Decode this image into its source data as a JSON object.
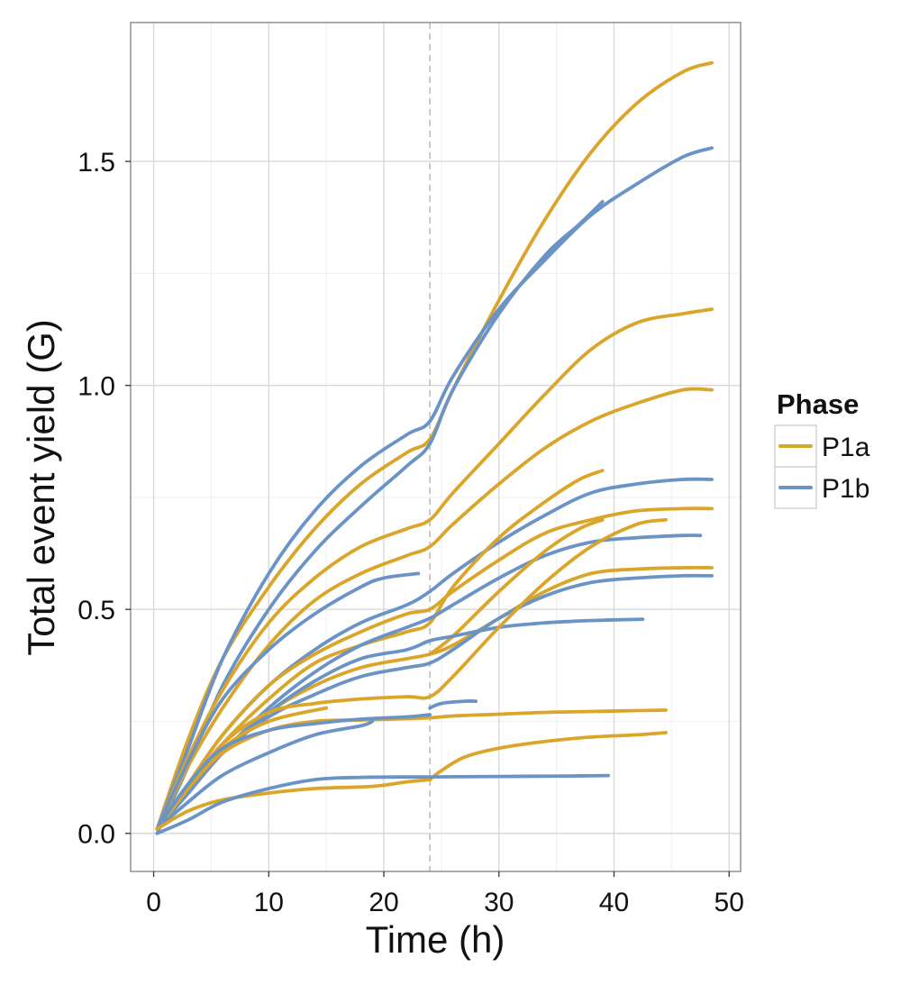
{
  "chart_data": {
    "type": "line",
    "xlabel": "Time (h)",
    "ylabel": "Total event yield (G)",
    "xlim": [
      -2,
      51
    ],
    "ylim": [
      -0.085,
      1.81
    ],
    "x_ticks": [
      0,
      10,
      20,
      30,
      40,
      50
    ],
    "y_ticks": [
      0.0,
      0.5,
      1.0,
      1.5
    ],
    "x_tick_labels": [
      "0",
      "10",
      "20",
      "30",
      "40",
      "50"
    ],
    "y_tick_labels": [
      "0.0",
      "0.5",
      "1.0",
      "1.5"
    ],
    "reference_line": {
      "x": 24,
      "style": "dashed"
    },
    "grid": true,
    "legend": {
      "title": "Phase",
      "position": "right",
      "entries": [
        {
          "label": "P1a",
          "color": "#dba52a"
        },
        {
          "label": "P1b",
          "color": "#6a93c6"
        }
      ]
    },
    "series": [
      {
        "group": "P1a",
        "x": [
          0.3,
          3,
          6,
          10,
          14,
          18,
          22,
          24,
          26,
          30,
          34,
          38,
          42,
          46,
          48.5
        ],
        "y": [
          0.01,
          0.21,
          0.39,
          0.55,
          0.68,
          0.78,
          0.85,
          0.88,
          0.99,
          1.19,
          1.37,
          1.52,
          1.63,
          1.7,
          1.72
        ]
      },
      {
        "group": "P1b",
        "x": [
          0.3,
          3,
          6,
          10,
          14,
          18,
          22,
          24,
          26,
          30,
          34,
          38,
          42,
          46,
          48.5
        ],
        "y": [
          0.01,
          0.19,
          0.39,
          0.58,
          0.72,
          0.82,
          0.89,
          0.92,
          1.02,
          1.17,
          1.28,
          1.38,
          1.45,
          1.51,
          1.53
        ]
      },
      {
        "group": "P1b",
        "x": [
          0.3,
          3,
          6,
          10,
          14,
          18,
          22,
          24,
          26,
          30,
          34,
          37,
          39
        ],
        "y": [
          0.0,
          0.15,
          0.33,
          0.5,
          0.63,
          0.73,
          0.82,
          0.87,
          0.99,
          1.16,
          1.29,
          1.36,
          1.41
        ]
      },
      {
        "group": "P1a",
        "x": [
          0.3,
          3,
          6,
          10,
          14,
          18,
          22,
          24,
          26,
          30,
          34,
          38,
          42,
          46,
          48.5
        ],
        "y": [
          0.01,
          0.17,
          0.32,
          0.47,
          0.57,
          0.64,
          0.68,
          0.7,
          0.76,
          0.87,
          0.98,
          1.08,
          1.14,
          1.16,
          1.17
        ]
      },
      {
        "group": "P1a",
        "x": [
          0.3,
          3,
          6,
          10,
          14,
          18,
          22,
          24,
          26,
          30,
          34,
          38,
          42,
          46,
          48.5
        ],
        "y": [
          0.01,
          0.15,
          0.28,
          0.42,
          0.52,
          0.58,
          0.62,
          0.64,
          0.69,
          0.78,
          0.86,
          0.92,
          0.96,
          0.99,
          0.99
        ]
      },
      {
        "group": "P1b",
        "x": [
          0.3,
          3,
          6,
          10,
          14,
          18,
          22,
          24,
          26,
          30,
          34,
          38,
          42,
          46,
          48.5
        ],
        "y": [
          0.01,
          0.11,
          0.22,
          0.33,
          0.41,
          0.47,
          0.51,
          0.54,
          0.58,
          0.65,
          0.71,
          0.76,
          0.78,
          0.79,
          0.79
        ]
      },
      {
        "group": "P1b",
        "x": [
          0.3,
          3,
          6,
          10,
          14,
          18,
          20,
          23
        ],
        "y": [
          0.01,
          0.16,
          0.3,
          0.41,
          0.49,
          0.55,
          0.57,
          0.58
        ]
      },
      {
        "group": "P1a",
        "x": [
          0.3,
          3,
          6,
          10,
          14,
          18,
          22,
          24,
          26,
          30,
          34,
          38,
          42,
          46,
          48.5
        ],
        "y": [
          0.01,
          0.11,
          0.22,
          0.33,
          0.4,
          0.45,
          0.49,
          0.5,
          0.54,
          0.61,
          0.67,
          0.7,
          0.72,
          0.725,
          0.725
        ]
      },
      {
        "group": "P1a",
        "x": [
          0.3,
          3,
          6,
          10,
          14,
          18,
          22,
          24,
          26,
          30,
          34,
          37,
          39
        ],
        "y": [
          0.01,
          0.1,
          0.2,
          0.3,
          0.38,
          0.42,
          0.45,
          0.47,
          0.55,
          0.66,
          0.74,
          0.79,
          0.81
        ]
      },
      {
        "group": "P1b",
        "x": [
          0.3,
          3,
          6,
          10,
          14,
          18,
          22,
          24,
          26,
          30,
          34,
          38,
          42,
          46,
          47.5
        ],
        "y": [
          0.01,
          0.09,
          0.18,
          0.28,
          0.36,
          0.42,
          0.46,
          0.48,
          0.51,
          0.57,
          0.62,
          0.65,
          0.66,
          0.665,
          0.665
        ]
      },
      {
        "group": "P1a",
        "x": [
          0.3,
          3,
          6,
          10,
          14,
          18,
          22,
          24,
          26,
          30,
          34,
          38,
          42,
          46,
          48.5
        ],
        "y": [
          0.01,
          0.09,
          0.18,
          0.27,
          0.33,
          0.37,
          0.39,
          0.4,
          0.42,
          0.48,
          0.54,
          0.58,
          0.59,
          0.593,
          0.593
        ]
      },
      {
        "group": "P1a",
        "x": [
          24,
          26,
          30,
          34,
          37,
          39
        ],
        "y": [
          0.4,
          0.44,
          0.54,
          0.63,
          0.68,
          0.7
        ]
      },
      {
        "group": "P1b",
        "x": [
          0.3,
          3,
          6,
          10,
          14,
          18,
          22,
          24,
          26,
          30,
          34,
          38,
          42,
          46,
          48.5
        ],
        "y": [
          0.01,
          0.09,
          0.18,
          0.26,
          0.31,
          0.35,
          0.37,
          0.38,
          0.41,
          0.48,
          0.53,
          0.56,
          0.57,
          0.575,
          0.575
        ]
      },
      {
        "group": "P1b",
        "x": [
          0.3,
          3,
          6,
          10,
          14,
          18,
          22,
          24,
          26,
          30,
          34,
          38,
          42.5
        ],
        "y": [
          0.01,
          0.09,
          0.18,
          0.27,
          0.34,
          0.39,
          0.41,
          0.43,
          0.44,
          0.46,
          0.47,
          0.475,
          0.478
        ]
      },
      {
        "group": "P1a",
        "x": [
          0.3,
          3,
          6,
          10,
          15
        ],
        "y": [
          0.01,
          0.1,
          0.19,
          0.25,
          0.28
        ]
      },
      {
        "group": "P1a",
        "x": [
          0.3,
          3,
          6,
          10,
          14,
          18,
          22,
          24,
          26,
          30,
          34,
          38,
          42,
          44.5
        ],
        "y": [
          0.01,
          0.1,
          0.2,
          0.27,
          0.29,
          0.3,
          0.305,
          0.305,
          0.35,
          0.46,
          0.56,
          0.64,
          0.69,
          0.7
        ]
      },
      {
        "group": "P1b",
        "x": [
          24,
          25,
          27,
          28
        ],
        "y": [
          0.28,
          0.29,
          0.295,
          0.295
        ]
      },
      {
        "group": "P1a",
        "x": [
          0.3,
          3,
          6,
          10,
          14,
          18,
          22,
          24,
          26,
          30,
          34,
          38,
          42,
          44.5
        ],
        "y": [
          0.01,
          0.1,
          0.18,
          0.23,
          0.25,
          0.253,
          0.256,
          0.258,
          0.262,
          0.266,
          0.27,
          0.272,
          0.274,
          0.275
        ]
      },
      {
        "group": "P1b",
        "x": [
          0.3,
          3,
          6,
          10,
          14,
          18,
          22,
          24
        ],
        "y": [
          0.01,
          0.11,
          0.19,
          0.23,
          0.245,
          0.255,
          0.26,
          0.265
        ]
      },
      {
        "group": "P1b",
        "x": [
          0.3,
          3,
          6,
          10,
          14,
          18,
          19
        ],
        "y": [
          0.01,
          0.07,
          0.13,
          0.18,
          0.22,
          0.24,
          0.25
        ]
      },
      {
        "group": "P1a",
        "x": [
          24,
          25,
          27,
          30,
          34,
          38,
          42,
          44.5
        ],
        "y": [
          0.12,
          0.14,
          0.17,
          0.19,
          0.205,
          0.215,
          0.22,
          0.225
        ]
      },
      {
        "group": "P1a",
        "x": [
          0.3,
          3,
          6,
          10,
          14,
          19,
          22,
          24
        ],
        "y": [
          0.01,
          0.05,
          0.075,
          0.09,
          0.1,
          0.105,
          0.115,
          0.12
        ]
      },
      {
        "group": "P1b",
        "x": [
          0.3,
          3,
          6,
          10,
          14,
          18,
          24,
          30,
          36,
          39.5
        ],
        "y": [
          0.0,
          0.03,
          0.07,
          0.1,
          0.12,
          0.125,
          0.126,
          0.127,
          0.128,
          0.129
        ]
      }
    ]
  }
}
